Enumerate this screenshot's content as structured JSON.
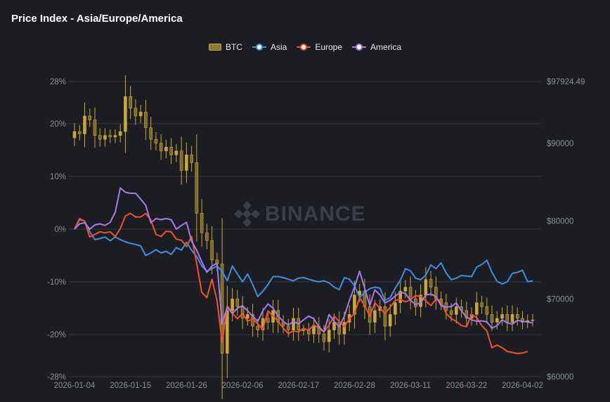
{
  "title": "Price Index - Asia/Europe/America",
  "watermark": "BINANCE",
  "colors": {
    "background": "#1c1d22",
    "grid": "#363840",
    "btc": "#c9a83a",
    "asia": "#3d8fe0",
    "europe": "#f0522a",
    "america": "#a57bf0"
  },
  "legend": [
    {
      "name": "BTC",
      "type": "candlestick",
      "color": "#c9a83a"
    },
    {
      "name": "Asia",
      "type": "line",
      "color": "#3d8fe0"
    },
    {
      "name": "Europe",
      "type": "line",
      "color": "#f0522a"
    },
    {
      "name": "America",
      "type": "line",
      "color": "#a57bf0"
    }
  ],
  "chart_data": {
    "type": "line",
    "title": "Price Index - Asia/Europe/America",
    "legend_position": "top-center",
    "grid": true,
    "x_tick_labels": [
      "2026-01-04",
      "2026-01-15",
      "2026-01-26",
      "2026-02-06",
      "2026-02-17",
      "2026-02-28",
      "2026-03-11",
      "2026-03-22",
      "2026-04-02"
    ],
    "y_left": {
      "ylim": [
        -28,
        28
      ],
      "tick_labels": [
        "28%",
        "20%",
        "10%",
        "0%",
        "-10%",
        "-20%",
        "-28%"
      ]
    },
    "y_right": {
      "ylim": [
        60000,
        97924.49
      ],
      "tick_labels": [
        "$97924.49",
        "$90000",
        "$80000",
        "$70000",
        "$60000"
      ]
    },
    "series": [
      {
        "name": "Asia",
        "values": [
          0,
          1.8,
          1.5,
          -0.5,
          -2,
          -1.8,
          -1.5,
          -2.2,
          -1.5,
          -2,
          -2.4,
          -2.7,
          -2.9,
          -3.2,
          -5,
          -4.5,
          -3.9,
          -4.5,
          -4.2,
          -4.8,
          -3.5,
          -4,
          -2.5,
          -4,
          -5.2,
          -7,
          -8,
          -7.5,
          -7,
          -8,
          -9.8,
          -7,
          -8.5,
          -10,
          -8.5,
          -10.5,
          -12.8,
          -11.8,
          -10.5,
          -9,
          -9,
          -9.2,
          -9.5,
          -9.8,
          -9.3,
          -9.2,
          -9.5,
          -9.8,
          -10,
          -9.8,
          -10.2,
          -11,
          -11.5,
          -9.2,
          -9.5,
          -10.7,
          -13,
          -12,
          -11.3,
          -11,
          -11.2,
          -13.5,
          -13,
          -11.2,
          -9.7,
          -7.5,
          -7.9,
          -9.3,
          -9.6,
          -8.7,
          -6.8,
          -7.5,
          -6.4,
          -8.3,
          -9.6,
          -9.3,
          -8.8,
          -8.9,
          -9,
          -7.2,
          -6.7,
          -5.9,
          -8.2,
          -9.9,
          -10.4,
          -10,
          -8.4,
          -8.2,
          -7.8,
          -10,
          -9.8
        ]
      },
      {
        "name": "Europe",
        "values": [
          0,
          2,
          1.5,
          -1.5,
          -1,
          -0.5,
          -0.7,
          -0.5,
          -1.4,
          0.1,
          2.5,
          3,
          2.3,
          2.3,
          3,
          1.7,
          -1,
          -1.4,
          -0.4,
          -0.5,
          -1.9,
          -2.1,
          -3.3,
          -1.4,
          -6.5,
          -12,
          -13,
          -9.5,
          -13.5,
          -21.5,
          -14.5,
          -16,
          -17,
          -16,
          -17.5,
          -17,
          -18,
          -19,
          -15.5,
          -16.5,
          -17.5,
          -18.8,
          -19.8,
          -19.3,
          -19.5,
          -18.8,
          -19.2,
          -18.2,
          -18.8,
          -19.5,
          -18.2,
          -16.5,
          -17.5,
          -18.5,
          -17,
          -16,
          -13,
          -14.5,
          -16.5,
          -14,
          -15,
          -16,
          -14.8,
          -13.5,
          -13.3,
          -13.8,
          -13.4,
          -12.6,
          -12.8,
          -13.6,
          -14.5,
          -13.3,
          -13.7,
          -16,
          -17,
          -17.5,
          -18.3,
          -18.5,
          -16.2,
          -16.8,
          -18.3,
          -19.3,
          -22.5,
          -22,
          -22.5,
          -23.2,
          -23.4,
          -23.6,
          -23.5,
          -23.2
        ]
      },
      {
        "name": "America",
        "values": [
          0,
          1,
          1.2,
          0,
          0.8,
          1,
          0.7,
          1.3,
          3.2,
          7.8,
          7,
          6.8,
          6.8,
          5.7,
          4.5,
          1.2,
          2,
          1.8,
          2,
          1.8,
          0,
          0.7,
          1.3,
          -2.3,
          -4,
          -6.2,
          -8.2,
          -7,
          -6.5,
          -18,
          -14.8,
          -16,
          -15,
          -14.5,
          -15.5,
          -16.5,
          -17.5,
          -15.5,
          -14.2,
          -15,
          -16.5,
          -17.5,
          -18.2,
          -17.5,
          -18,
          -17.2,
          -16.5,
          -17,
          -18.5,
          -19.5,
          -16.2,
          -17.5,
          -18.5,
          -16.5,
          -13.5,
          -11,
          -8,
          -11.2,
          -14.5,
          -11.5,
          -12.5,
          -14,
          -13.5,
          -12.7,
          -12,
          -12.2,
          -13.5,
          -14.3,
          -14,
          -12.5,
          -12.3,
          -12.8,
          -14.5,
          -14.8,
          -14.7,
          -14,
          -15.5,
          -16.7,
          -17.2,
          -17.5,
          -17.4,
          -17.6,
          -18.8,
          -18.3,
          -17.2,
          -17.8,
          -18,
          -17.3,
          -17.5,
          -17.6,
          -17.8
        ]
      },
      {
        "name": "BTC",
        "type": "candlestick",
        "close": [
          91500,
          91200,
          93500,
          93000,
          91000,
          90500,
          91000,
          90800,
          91000,
          91500,
          96000,
          94500,
          93500,
          94000,
          92000,
          90500,
          90000,
          89000,
          89500,
          88500,
          89000,
          86500,
          88500,
          87500,
          81000,
          78500,
          77500,
          75000,
          74500,
          63000,
          68500,
          70000,
          69000,
          67500,
          68000,
          66500,
          66000,
          67500,
          67000,
          68500,
          67000,
          66500,
          66000,
          67500,
          66000,
          66000,
          65500,
          66500,
          65500,
          64500,
          66000,
          67000,
          65500,
          67000,
          68000,
          70500,
          71000,
          69000,
          67000,
          68500,
          69000,
          66500,
          68000,
          69500,
          71000,
          71500,
          70000,
          69000,
          70500,
          72500,
          71500,
          70000,
          69500,
          68500,
          68000,
          69000,
          68500,
          67500,
          68000,
          69500,
          69000,
          68000,
          67000,
          67500,
          68000,
          67000,
          68000,
          67500,
          67000,
          67200,
          67300
        ]
      }
    ]
  }
}
